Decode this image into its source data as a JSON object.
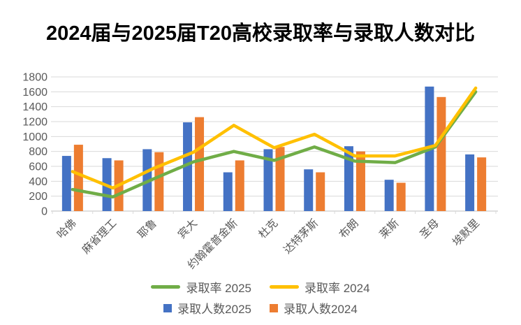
{
  "title": "2024届与2025届T20高校录取率与录取人数对比",
  "colors": {
    "bar_2025": "#4472C4",
    "bar_2024": "#ED7D31",
    "line_2025": "#70AD47",
    "line_2024": "#FFC000",
    "gridline": "#D9D9D9",
    "axis_line": "#BFBFBF",
    "axis_text": "#595959",
    "title_text": "#000000"
  },
  "chart_data": {
    "type": "combo-bar-line",
    "title": "2024届与2025届T20高校录取率与录取人数对比",
    "categories": [
      "哈佛",
      "麻省理工",
      "耶鲁",
      "宾大",
      "约翰霍普金斯",
      "杜克",
      "达特茅斯",
      "布朗",
      "莱斯",
      "圣母",
      "埃默里"
    ],
    "series": [
      {
        "name": "录取人数2025",
        "type": "bar",
        "color": "#4472C4",
        "values": [
          740,
          710,
          830,
          1190,
          520,
          830,
          560,
          870,
          420,
          1670,
          760
        ]
      },
      {
        "name": "录取人数2024",
        "type": "bar",
        "color": "#ED7D31",
        "values": [
          890,
          680,
          790,
          1260,
          680,
          860,
          520,
          800,
          380,
          1530,
          720
        ]
      },
      {
        "name": "录取率 2025",
        "type": "line",
        "color": "#70AD47",
        "values": [
          290,
          190,
          430,
          660,
          800,
          680,
          860,
          670,
          650,
          860,
          1600
        ]
      },
      {
        "name": "录取率 2024",
        "type": "line",
        "color": "#FFC000",
        "values": [
          530,
          310,
          570,
          790,
          1150,
          850,
          1030,
          740,
          740,
          880,
          1650
        ]
      }
    ],
    "xlabel": "",
    "ylabel": "",
    "ylim": [
      0,
      1800
    ],
    "ytick_step": 200,
    "grid": true,
    "legend_position": "bottom",
    "x_tick_rotation": -45
  },
  "legend": {
    "rows": [
      [
        {
          "swatch": "line",
          "color": "#70AD47",
          "label": "录取率 2025"
        },
        {
          "swatch": "line",
          "color": "#FFC000",
          "label": "录取率 2024"
        }
      ],
      [
        {
          "swatch": "square",
          "color": "#4472C4",
          "label": "录取人数2025"
        },
        {
          "swatch": "square",
          "color": "#ED7D31",
          "label": "录取人数2024"
        }
      ]
    ]
  }
}
